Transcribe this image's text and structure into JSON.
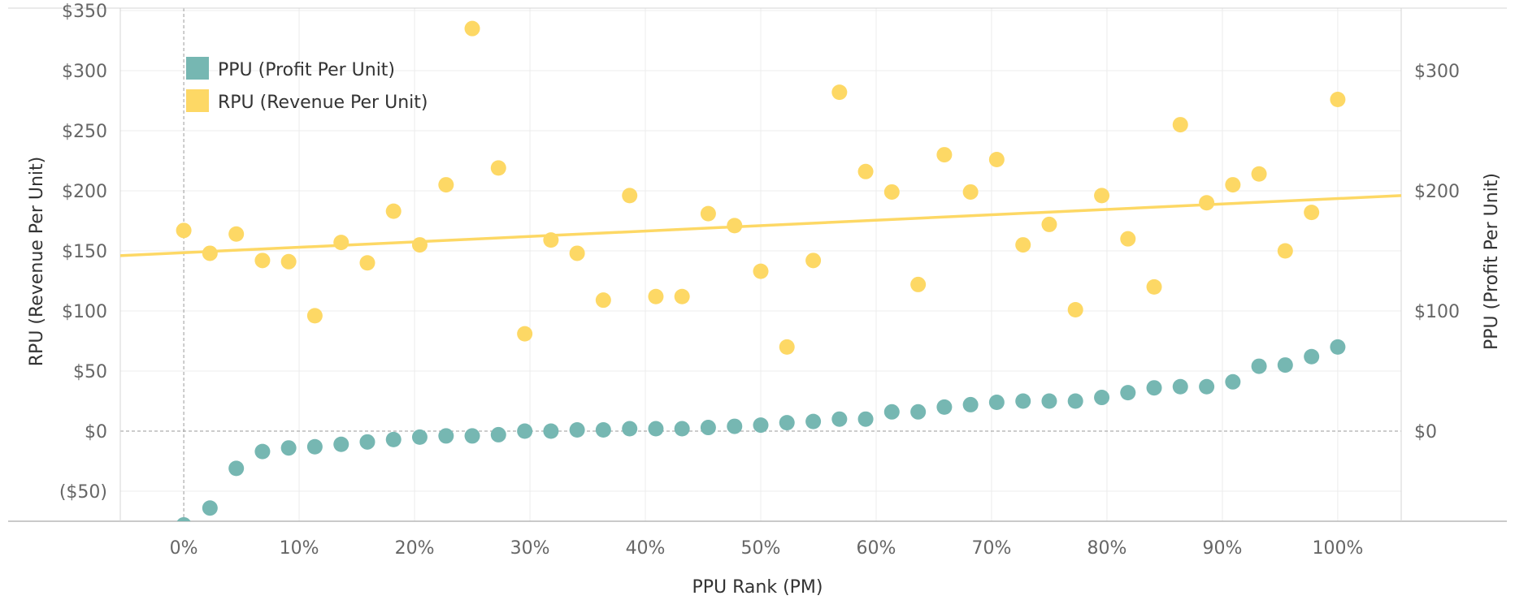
{
  "chart_data": {
    "type": "scatter",
    "title": "",
    "xlabel": "PPU Rank (PM)",
    "ylabel_left": "RPU (Revenue Per Unit)",
    "ylabel_right": "PPU (Profit Per Unit)",
    "xlim": [
      -0.055,
      1.055
    ],
    "ylim_left": [
      -75,
      352
    ],
    "ylim_right": [
      -75,
      352
    ],
    "x_tick_labels": [
      "0%",
      "10%",
      "20%",
      "30%",
      "40%",
      "50%",
      "60%",
      "70%",
      "80%",
      "90%",
      "100%"
    ],
    "y_left_tick_labels": [
      "($50)",
      "$0",
      "$50",
      "$100",
      "$150",
      "$200",
      "$250",
      "$300",
      "$350"
    ],
    "y_right_tick_labels": [
      "$0",
      "$100",
      "$200",
      "$300"
    ],
    "legend_position": "top-left",
    "series": [
      {
        "name": "PPU (Profit Per Unit)",
        "color": "#76b7b2",
        "axis": "right",
        "x": [
          0.0,
          0.0227,
          0.0455,
          0.0682,
          0.0909,
          0.1136,
          0.1364,
          0.1591,
          0.1818,
          0.2045,
          0.2273,
          0.25,
          0.2727,
          0.2955,
          0.3182,
          0.3409,
          0.3636,
          0.3864,
          0.4091,
          0.4318,
          0.4545,
          0.4773,
          0.5,
          0.5227,
          0.5455,
          0.5682,
          0.5909,
          0.6136,
          0.6364,
          0.6591,
          0.6818,
          0.7045,
          0.7273,
          0.75,
          0.7727,
          0.7955,
          0.8182,
          0.8409,
          0.8636,
          0.8864,
          0.9091,
          0.9318,
          0.9545,
          0.9773,
          1.0
        ],
        "y": [
          -78,
          -64,
          -31,
          -17,
          -14,
          -13,
          -11,
          -9,
          -7,
          -5,
          -4,
          -4,
          -3,
          0,
          0,
          1,
          1,
          2,
          2,
          2,
          3,
          4,
          5,
          7,
          8,
          10,
          10,
          16,
          16,
          20,
          22,
          24,
          25,
          25,
          25,
          28,
          32,
          36,
          37,
          37,
          41,
          54,
          55,
          62,
          70
        ]
      },
      {
        "name": "RPU (Revenue Per Unit)",
        "color": "#fdd865",
        "axis": "left",
        "x": [
          0.0,
          0.0227,
          0.0455,
          0.0682,
          0.0909,
          0.1136,
          0.1364,
          0.1591,
          0.1818,
          0.2045,
          0.2273,
          0.25,
          0.2727,
          0.2955,
          0.3182,
          0.3409,
          0.3636,
          0.3864,
          0.4091,
          0.4318,
          0.4545,
          0.4773,
          0.5,
          0.5227,
          0.5455,
          0.5682,
          0.5909,
          0.6136,
          0.6364,
          0.6591,
          0.6818,
          0.7045,
          0.7273,
          0.75,
          0.7727,
          0.7955,
          0.8182,
          0.8409,
          0.8636,
          0.8864,
          0.9091,
          0.9318,
          0.9545,
          0.9773,
          1.0
        ],
        "y": [
          167,
          148,
          164,
          142,
          141,
          96,
          157,
          140,
          183,
          155,
          205,
          335,
          219,
          81,
          159,
          148,
          109,
          196,
          112,
          112,
          181,
          171,
          133,
          70,
          142,
          282,
          216,
          199,
          122,
          230,
          199,
          226,
          155,
          172,
          101,
          196,
          160,
          120,
          255,
          190,
          205,
          214,
          150,
          182,
          276
        ]
      }
    ],
    "trend_line": {
      "series": "RPU (Revenue Per Unit)",
      "color": "#fdd865",
      "x": [
        -0.055,
        1.055
      ],
      "y": [
        146,
        196
      ]
    }
  }
}
